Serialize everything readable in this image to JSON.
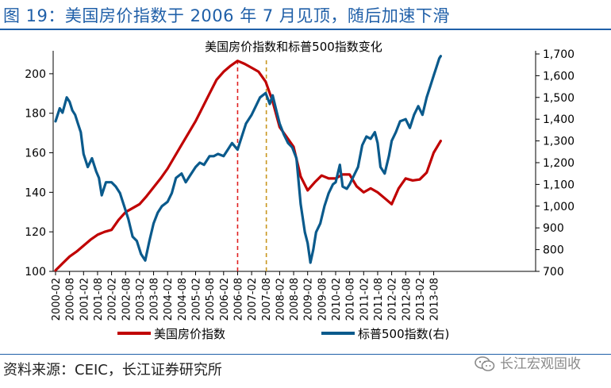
{
  "figure": {
    "title": "图 19：美国房价指数于 2006 年 7 月见顶，随后加速下滑",
    "source": "资料来源：CEIC，长江证券研究所",
    "watermark": "长江宏观固收",
    "watermark_icon": "wechat-icon"
  },
  "colors": {
    "house": "#c00000",
    "sp500": "#0a5a8c",
    "peak_line": "#e02020",
    "decline_line": "#c8961e",
    "title": "#1f5fa8"
  },
  "chart_data": {
    "type": "line",
    "title": "美国房价指数和标普500指数变化",
    "x_tick_labels": [
      "2000-02",
      "2000-08",
      "2001-02",
      "2001-08",
      "2002-02",
      "2002-08",
      "2003-02",
      "2003-08",
      "2004-02",
      "2004-08",
      "2005-02",
      "2005-08",
      "2006-02",
      "2006-08",
      "2007-02",
      "2007-08",
      "2008-02",
      "2008-08",
      "2009-02",
      "2009-08",
      "2010-02",
      "2010-08",
      "2011-02",
      "2011-08",
      "2012-02",
      "2012-08",
      "2013-02",
      "2013-08"
    ],
    "x_range": [
      0,
      27.5
    ],
    "y_left": {
      "min": 100,
      "max": 210,
      "ticks": [
        100,
        120,
        140,
        160,
        180,
        200
      ],
      "tick_labels": [
        "100",
        "120",
        "140",
        "160",
        "180",
        "200"
      ]
    },
    "y_right": {
      "min": 700,
      "max": 1700,
      "ticks": [
        700,
        800,
        900,
        1000,
        1100,
        1200,
        1300,
        1400,
        1500,
        1600,
        1700
      ],
      "tick_labels": [
        "700",
        "800",
        "900",
        "1,000",
        "1,100",
        "1,200",
        "1,300",
        "1,400",
        "1,500",
        "1,600",
        "1,700"
      ]
    },
    "reference_lines": [
      {
        "name": "peak-2006-08",
        "x": 13.0
      },
      {
        "name": "drop-2007-08",
        "x": 15.05
      }
    ],
    "series": [
      {
        "name": "美国房价指数",
        "axis": "left",
        "points": [
          [
            0,
            100.5
          ],
          [
            0.5,
            104
          ],
          [
            1,
            107.5
          ],
          [
            1.5,
            110
          ],
          [
            2,
            113
          ],
          [
            2.5,
            116
          ],
          [
            3,
            118.5
          ],
          [
            3.5,
            120
          ],
          [
            4,
            121
          ],
          [
            4.5,
            126
          ],
          [
            5,
            130
          ],
          [
            5.5,
            132
          ],
          [
            6,
            134
          ],
          [
            6.5,
            138
          ],
          [
            7,
            142.5
          ],
          [
            7.5,
            147
          ],
          [
            8,
            152
          ],
          [
            8.5,
            158
          ],
          [
            9,
            164
          ],
          [
            9.5,
            170
          ],
          [
            10,
            176
          ],
          [
            10.5,
            183
          ],
          [
            11,
            190
          ],
          [
            11.5,
            197
          ],
          [
            12,
            201
          ],
          [
            12.5,
            204
          ],
          [
            13,
            206.5
          ],
          [
            13.5,
            205
          ],
          [
            14,
            203
          ],
          [
            14.5,
            201
          ],
          [
            15,
            196
          ],
          [
            15.5,
            186
          ],
          [
            16,
            173
          ],
          [
            16.5,
            168
          ],
          [
            17,
            163
          ],
          [
            17.5,
            148
          ],
          [
            18,
            141
          ],
          [
            18.5,
            145
          ],
          [
            19,
            148.5
          ],
          [
            19.5,
            147
          ],
          [
            20,
            147
          ],
          [
            20.5,
            149
          ],
          [
            21,
            149
          ],
          [
            21.5,
            143
          ],
          [
            22,
            140
          ],
          [
            22.5,
            142
          ],
          [
            23,
            140
          ],
          [
            23.5,
            137
          ],
          [
            24,
            134
          ],
          [
            24.5,
            142
          ],
          [
            25,
            147
          ],
          [
            25.5,
            146
          ],
          [
            26,
            146.5
          ],
          [
            26.5,
            150
          ],
          [
            27,
            160
          ],
          [
            27.5,
            166
          ]
        ]
      },
      {
        "name": "标普500指数(右)",
        "axis": "right",
        "points": [
          [
            0,
            1390
          ],
          [
            0.3,
            1450
          ],
          [
            0.5,
            1430
          ],
          [
            0.8,
            1500
          ],
          [
            1,
            1480
          ],
          [
            1.2,
            1440
          ],
          [
            1.4,
            1420
          ],
          [
            1.6,
            1380
          ],
          [
            1.8,
            1340
          ],
          [
            2,
            1240
          ],
          [
            2.3,
            1180
          ],
          [
            2.6,
            1220
          ],
          [
            2.9,
            1160
          ],
          [
            3.1,
            1130
          ],
          [
            3.3,
            1050
          ],
          [
            3.6,
            1110
          ],
          [
            4,
            1110
          ],
          [
            4.3,
            1090
          ],
          [
            4.6,
            1060
          ],
          [
            4.9,
            1000
          ],
          [
            5.2,
            940
          ],
          [
            5.5,
            860
          ],
          [
            5.8,
            840
          ],
          [
            6.1,
            780
          ],
          [
            6.4,
            750
          ],
          [
            6.7,
            840
          ],
          [
            7,
            920
          ],
          [
            7.3,
            970
          ],
          [
            7.6,
            1000
          ],
          [
            8,
            1020
          ],
          [
            8.3,
            1060
          ],
          [
            8.6,
            1130
          ],
          [
            9,
            1150
          ],
          [
            9.3,
            1110
          ],
          [
            9.6,
            1140
          ],
          [
            10,
            1180
          ],
          [
            10.3,
            1200
          ],
          [
            10.6,
            1190
          ],
          [
            11,
            1230
          ],
          [
            11.3,
            1230
          ],
          [
            11.6,
            1240
          ],
          [
            12,
            1230
          ],
          [
            12.3,
            1260
          ],
          [
            12.6,
            1290
          ],
          [
            13,
            1260
          ],
          [
            13.3,
            1320
          ],
          [
            13.6,
            1380
          ],
          [
            14,
            1420
          ],
          [
            14.3,
            1460
          ],
          [
            14.6,
            1500
          ],
          [
            15,
            1520
          ],
          [
            15.3,
            1470
          ],
          [
            15.5,
            1510
          ],
          [
            15.8,
            1430
          ],
          [
            16,
            1380
          ],
          [
            16.3,
            1330
          ],
          [
            16.6,
            1290
          ],
          [
            16.9,
            1270
          ],
          [
            17.2,
            1220
          ],
          [
            17.5,
            1010
          ],
          [
            17.8,
            880
          ],
          [
            18,
            830
          ],
          [
            18.2,
            740
          ],
          [
            18.4,
            800
          ],
          [
            18.6,
            880
          ],
          [
            18.9,
            920
          ],
          [
            19.2,
            1000
          ],
          [
            19.5,
            1060
          ],
          [
            19.8,
            1100
          ],
          [
            20,
            1110
          ],
          [
            20.3,
            1190
          ],
          [
            20.5,
            1090
          ],
          [
            20.8,
            1080
          ],
          [
            21,
            1100
          ],
          [
            21.3,
            1140
          ],
          [
            21.6,
            1180
          ],
          [
            21.9,
            1280
          ],
          [
            22.2,
            1320
          ],
          [
            22.5,
            1310
          ],
          [
            22.8,
            1340
          ],
          [
            23,
            1290
          ],
          [
            23.2,
            1180
          ],
          [
            23.5,
            1150
          ],
          [
            23.8,
            1230
          ],
          [
            24,
            1300
          ],
          [
            24.3,
            1340
          ],
          [
            24.6,
            1390
          ],
          [
            25,
            1400
          ],
          [
            25.3,
            1360
          ],
          [
            25.6,
            1420
          ],
          [
            25.9,
            1460
          ],
          [
            26.2,
            1420
          ],
          [
            26.5,
            1500
          ],
          [
            26.8,
            1560
          ],
          [
            27,
            1600
          ],
          [
            27.2,
            1640
          ],
          [
            27.4,
            1680
          ],
          [
            27.5,
            1690
          ]
        ]
      }
    ],
    "legend": {
      "position": "bottom-center",
      "entries": [
        "美国房价指数",
        "标普500指数(右)"
      ]
    }
  }
}
